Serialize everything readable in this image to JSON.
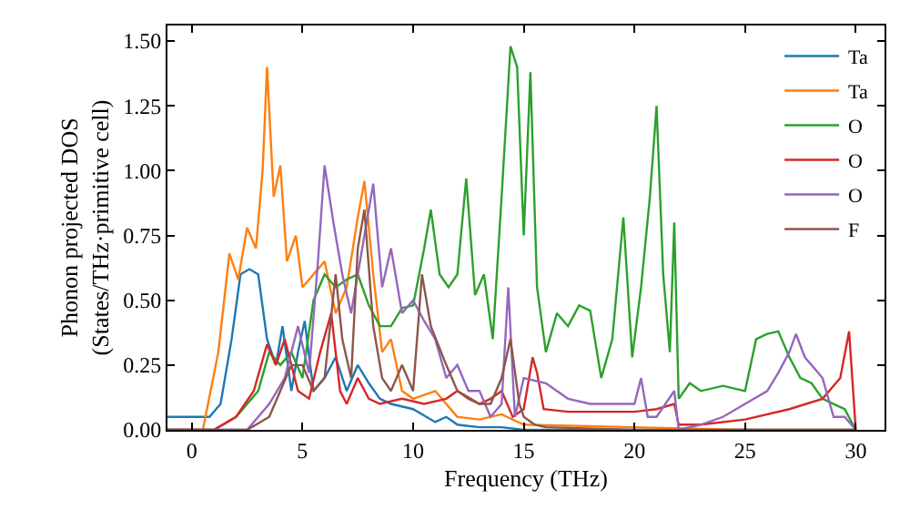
{
  "chart_data": {
    "type": "line",
    "xlabel": "Frequency (THz)",
    "ylabel": "Phonon projected DOS\n(States/THz·primitive cell)",
    "xlim": [
      -1.1,
      31.3
    ],
    "ylim": [
      0,
      1.56
    ],
    "xticks": [
      0,
      5,
      10,
      15,
      20,
      25,
      30
    ],
    "yticks": [
      {
        "value": 0,
        "label": "0.00"
      },
      {
        "value": 0.25,
        "label": "0.25"
      },
      {
        "value": 0.5,
        "label": "0.50"
      },
      {
        "value": 0.75,
        "label": "0.75"
      },
      {
        "value": 1,
        "label": "1.00"
      },
      {
        "value": 1.25,
        "label": "1.25"
      },
      {
        "value": 1.5,
        "label": "1.50"
      }
    ],
    "legend": "top right",
    "marker": "none",
    "line_style": "solid",
    "series": [
      {
        "name": "Ta",
        "color": "#1f77b4",
        "x": [
          -1.1,
          0.8,
          1.3,
          1.8,
          2.2,
          2.6,
          3.0,
          3.4,
          3.8,
          4.1,
          4.5,
          4.8,
          5.1,
          5.5,
          6.0,
          6.5,
          7.0,
          7.5,
          8.0,
          8.5,
          9.0,
          10.0,
          11.0,
          11.5,
          12.0,
          13.0,
          14.0,
          15.0,
          20.0,
          25.0,
          30.0
        ],
        "values": [
          0.05,
          0.05,
          0.1,
          0.35,
          0.6,
          0.62,
          0.6,
          0.35,
          0.25,
          0.4,
          0.15,
          0.3,
          0.42,
          0.15,
          0.2,
          0.28,
          0.15,
          0.25,
          0.18,
          0.12,
          0.1,
          0.08,
          0.03,
          0.05,
          0.02,
          0.01,
          0.01,
          0.0,
          0.0,
          0.0,
          0.0
        ]
      },
      {
        "name": "Ta",
        "color": "#ff7f0e",
        "x": [
          -1.1,
          0.5,
          1.2,
          1.7,
          2.1,
          2.5,
          2.9,
          3.2,
          3.4,
          3.7,
          4.0,
          4.3,
          4.7,
          5.0,
          5.5,
          6.0,
          6.5,
          7.0,
          7.5,
          7.8,
          8.2,
          8.6,
          9.0,
          9.5,
          10.0,
          11.0,
          12.0,
          13.0,
          14.0,
          15.0,
          20.0,
          25.0,
          30.0
        ],
        "values": [
          0.0,
          0.0,
          0.3,
          0.68,
          0.58,
          0.78,
          0.7,
          1.0,
          1.4,
          0.9,
          1.02,
          0.65,
          0.75,
          0.55,
          0.6,
          0.65,
          0.45,
          0.55,
          0.82,
          0.96,
          0.6,
          0.3,
          0.35,
          0.15,
          0.12,
          0.15,
          0.05,
          0.04,
          0.06,
          0.02,
          0.01,
          0.0,
          0.0
        ]
      },
      {
        "name": "O",
        "color": "#2ca02c",
        "x": [
          -1.1,
          1.0,
          2.0,
          3.0,
          3.5,
          4.0,
          4.5,
          5.0,
          5.5,
          6.0,
          6.5,
          7.0,
          7.5,
          8.0,
          8.5,
          9.0,
          9.5,
          10.0,
          10.5,
          10.8,
          11.2,
          11.6,
          12.0,
          12.4,
          12.8,
          13.2,
          13.6,
          14.0,
          14.4,
          14.7,
          15.0,
          15.3,
          15.6,
          16.0,
          16.5,
          17.0,
          17.5,
          18.0,
          18.5,
          19.0,
          19.5,
          19.9,
          20.3,
          20.7,
          21.0,
          21.3,
          21.6,
          21.8,
          22.0,
          22.5,
          23.0,
          24.0,
          25.0,
          25.5,
          26.0,
          26.5,
          27.0,
          27.5,
          28.0,
          28.5,
          29.0,
          29.5,
          30.0
        ],
        "values": [
          0.0,
          0.0,
          0.05,
          0.15,
          0.3,
          0.25,
          0.3,
          0.2,
          0.5,
          0.6,
          0.55,
          0.58,
          0.6,
          0.48,
          0.4,
          0.4,
          0.47,
          0.48,
          0.7,
          0.85,
          0.6,
          0.55,
          0.6,
          0.97,
          0.52,
          0.6,
          0.35,
          0.9,
          1.48,
          1.4,
          0.75,
          1.38,
          0.55,
          0.3,
          0.45,
          0.4,
          0.48,
          0.46,
          0.2,
          0.35,
          0.82,
          0.28,
          0.55,
          0.9,
          1.25,
          0.6,
          0.3,
          0.8,
          0.12,
          0.18,
          0.15,
          0.17,
          0.15,
          0.35,
          0.37,
          0.38,
          0.28,
          0.2,
          0.18,
          0.12,
          0.1,
          0.08,
          0.0
        ]
      },
      {
        "name": "O",
        "color": "#d62728",
        "x": [
          -1.1,
          1.0,
          2.0,
          2.8,
          3.4,
          3.8,
          4.2,
          4.8,
          5.3,
          5.8,
          6.3,
          6.7,
          7.0,
          7.5,
          8.0,
          8.5,
          9.5,
          10.5,
          11.5,
          12.0,
          13.0,
          13.5,
          14.0,
          14.5,
          15.0,
          15.4,
          15.6,
          15.9,
          17.0,
          19.0,
          20.0,
          21.0,
          21.8,
          22.0,
          23.0,
          25.0,
          27.0,
          28.5,
          29.3,
          29.7,
          30.0
        ],
        "values": [
          0.0,
          0.0,
          0.05,
          0.15,
          0.33,
          0.25,
          0.35,
          0.15,
          0.12,
          0.3,
          0.45,
          0.15,
          0.1,
          0.2,
          0.12,
          0.1,
          0.12,
          0.1,
          0.12,
          0.15,
          0.1,
          0.12,
          0.15,
          0.05,
          0.08,
          0.28,
          0.22,
          0.08,
          0.07,
          0.07,
          0.07,
          0.08,
          0.1,
          0.02,
          0.02,
          0.04,
          0.08,
          0.12,
          0.2,
          0.38,
          0.0
        ]
      },
      {
        "name": "O",
        "color": "#9467bd",
        "x": [
          -1.1,
          2.5,
          3.5,
          4.2,
          4.8,
          5.3,
          5.7,
          6.0,
          6.4,
          6.8,
          7.2,
          7.6,
          8.2,
          8.6,
          9.0,
          9.5,
          10.0,
          10.5,
          11.0,
          11.5,
          12.0,
          12.5,
          13.0,
          13.5,
          14.0,
          14.3,
          14.6,
          15.0,
          16.0,
          17.0,
          18.0,
          19.0,
          20.0,
          20.3,
          20.6,
          21.0,
          21.8,
          22.0,
          23.0,
          24.0,
          25.0,
          26.0,
          26.5,
          27.0,
          27.3,
          27.7,
          28.0,
          28.5,
          29.0,
          29.5,
          30.0
        ],
        "values": [
          0.0,
          0.0,
          0.1,
          0.2,
          0.4,
          0.22,
          0.65,
          1.02,
          0.8,
          0.6,
          0.45,
          0.65,
          0.95,
          0.55,
          0.7,
          0.45,
          0.5,
          0.42,
          0.35,
          0.2,
          0.25,
          0.15,
          0.15,
          0.05,
          0.1,
          0.55,
          0.05,
          0.2,
          0.18,
          0.12,
          0.1,
          0.1,
          0.1,
          0.2,
          0.05,
          0.05,
          0.15,
          0.0,
          0.02,
          0.05,
          0.1,
          0.15,
          0.22,
          0.3,
          0.37,
          0.28,
          0.25,
          0.2,
          0.05,
          0.05,
          0.0
        ]
      },
      {
        "name": "F",
        "color": "#8c564b",
        "x": [
          -1.1,
          2.5,
          3.5,
          4.0,
          4.5,
          5.0,
          5.5,
          6.0,
          6.5,
          6.8,
          7.2,
          7.5,
          7.8,
          8.2,
          8.6,
          9.0,
          9.5,
          10.0,
          10.4,
          10.8,
          11.5,
          12.0,
          12.5,
          13.0,
          13.5,
          14.0,
          14.4,
          14.8,
          15.0,
          15.5,
          16.0,
          20.0,
          25.0,
          30.0
        ],
        "values": [
          0.0,
          0.0,
          0.05,
          0.15,
          0.25,
          0.25,
          0.15,
          0.2,
          0.6,
          0.35,
          0.2,
          0.7,
          0.85,
          0.4,
          0.2,
          0.15,
          0.25,
          0.15,
          0.6,
          0.4,
          0.25,
          0.15,
          0.12,
          0.1,
          0.1,
          0.2,
          0.35,
          0.1,
          0.05,
          0.02,
          0.01,
          0.0,
          0.0,
          0.0
        ]
      }
    ]
  }
}
